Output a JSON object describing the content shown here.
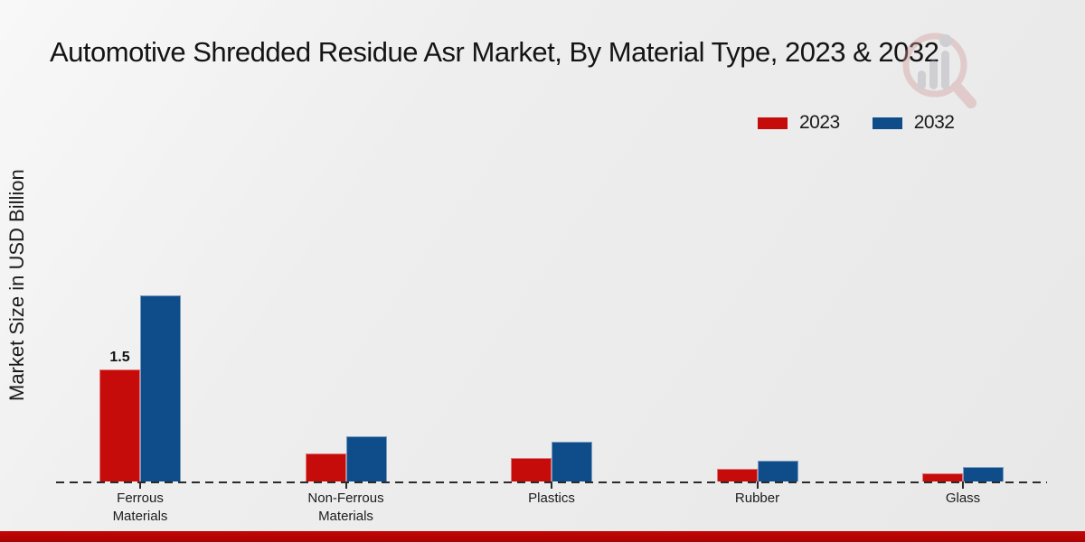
{
  "title": "Automotive Shredded Residue Asr Market, By Material Type, 2023 & 2032",
  "y_axis_label": "Market Size in USD Billion",
  "legend": [
    {
      "label": "2023",
      "color": "#c60b0b"
    },
    {
      "label": "2032",
      "color": "#0e4d8a"
    }
  ],
  "colors": {
    "bar_2023": "#c60b0b",
    "bar_2032": "#0e4d8a",
    "footer_band": "#b50404",
    "background": "#ececec"
  },
  "watermark_icon": "magnifier-bar-chart-logo",
  "chart_data": {
    "type": "bar",
    "title": "Automotive Shredded Residue Asr Market, By Material Type, 2023 & 2032",
    "categories": [
      "Ferrous Materials",
      "Non-Ferrous Materials",
      "Plastics",
      "Rubber",
      "Glass"
    ],
    "category_label_lines": [
      [
        "Ferrous",
        "Materials"
      ],
      [
        "Non-Ferrous",
        "Materials"
      ],
      [
        "Plastics"
      ],
      [
        "Rubber"
      ],
      [
        "Glass"
      ]
    ],
    "series": [
      {
        "name": "2023",
        "color": "#c60b0b",
        "values": [
          1.5,
          0.38,
          0.31,
          0.17,
          0.11
        ],
        "labels": [
          "1.5",
          "",
          "",
          "",
          ""
        ]
      },
      {
        "name": "2032",
        "color": "#0e4d8a",
        "values": [
          2.5,
          0.61,
          0.53,
          0.28,
          0.19
        ],
        "labels": [
          "",
          "",
          "",
          "",
          ""
        ]
      }
    ],
    "xlabel": "",
    "ylabel": "Market Size in USD Billion",
    "ylim": [
      0,
      2.8
    ],
    "y_ticks_visible": false,
    "grid": false,
    "baseline_style": "dashed",
    "legend_position": "top-right"
  }
}
